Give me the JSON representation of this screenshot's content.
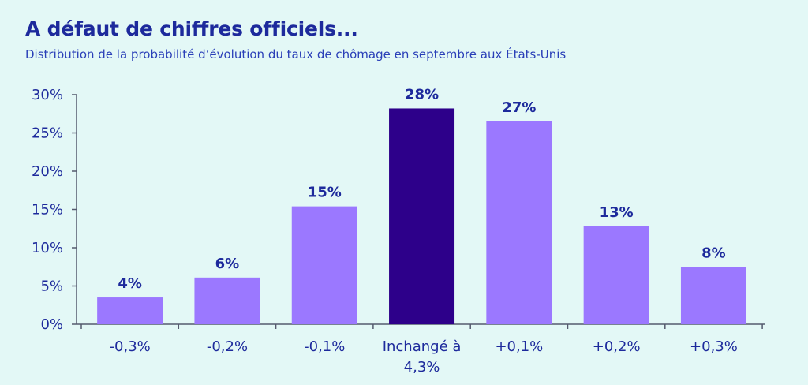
{
  "chart_data": {
    "type": "bar",
    "title": "A défaut de chiffres officiels...",
    "subtitle": "Distribution de la probabilité d’évolution du taux de chômage en septembre aux États-Unis",
    "categories": [
      [
        "-0,3%"
      ],
      [
        "-0,2%"
      ],
      [
        "-0,1%"
      ],
      [
        "Inchangé à",
        "4,3%"
      ],
      [
        "+0,1%"
      ],
      [
        "+0,2%"
      ],
      [
        "+0,3%"
      ]
    ],
    "values": [
      3.5,
      6.1,
      15.4,
      28.2,
      26.5,
      12.8,
      7.5
    ],
    "data_labels": [
      "4%",
      "6%",
      "15%",
      "28%",
      "27%",
      "13%",
      "8%"
    ],
    "ylim": [
      0,
      30
    ],
    "y_ticks": [
      0,
      5,
      10,
      15,
      20,
      25,
      30
    ],
    "y_tick_labels": [
      "0%",
      "5%",
      "10%",
      "15%",
      "20%",
      "25%",
      "30%"
    ],
    "highlight_index": 3,
    "colors": {
      "bar": "#9b78ff",
      "highlight": "#2d008a",
      "text": "#1d2a9c",
      "axis": "#555a6e",
      "background": "#e3f8f6"
    },
    "grid": false,
    "xlabel": "",
    "ylabel": ""
  }
}
